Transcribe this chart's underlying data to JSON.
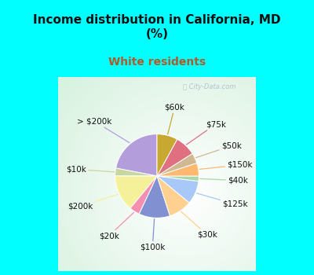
{
  "title": "Income distribution in California, MD\n(%)",
  "subtitle": "White residents",
  "title_color": "#111111",
  "subtitle_color": "#b05a2a",
  "bg_top_color": "#00ffff",
  "bg_chart_color_outer": "#b8e8d8",
  "bg_chart_color_inner": "#ffffff",
  "watermark": "ⓘ City-Data.com",
  "labels": [
    "> $200k",
    "$10k",
    "$200k",
    "$20k",
    "$100k",
    "$30k",
    "$125k",
    "$40k",
    "$150k",
    "$50k",
    "$75k",
    "$60k"
  ],
  "values": [
    22,
    3,
    14,
    4,
    12,
    9,
    9,
    2,
    5,
    4,
    8,
    8
  ],
  "colors": [
    "#b39ddb",
    "#c8d6a0",
    "#f5f19a",
    "#f48fb1",
    "#8090d0",
    "#ffd090",
    "#a8c8f8",
    "#a8d8a8",
    "#ffb870",
    "#d0b890",
    "#e07080",
    "#c8a830"
  ],
  "label_fontsize": 7.5,
  "startangle": 90,
  "title_fontsize": 11,
  "subtitle_fontsize": 10
}
